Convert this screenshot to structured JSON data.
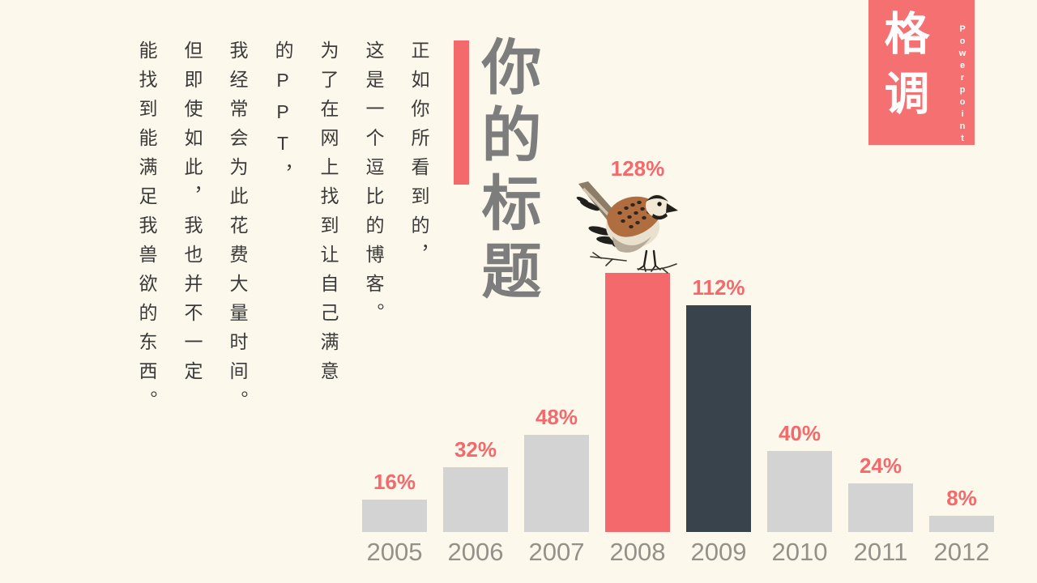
{
  "slide": {
    "background_color": "#fdf8ec"
  },
  "logo": {
    "title": "格调",
    "subtitle": "Powerpoint",
    "background_color": "#f57070",
    "text_color": "#ffffff"
  },
  "title": {
    "text": "你的标题",
    "accent_color": "#f4696b",
    "text_color": "#7d7d7d"
  },
  "body": {
    "columns": [
      "正如你所看到的，",
      "这是一个逗比的博客。",
      "为了在网上找到让自己满意",
      "的PPT，",
      "我经常会为此花费大量时间。",
      "但即使如此，我也并不一定",
      "能找到能满足我兽欲的东西。"
    ]
  },
  "chart_data": {
    "type": "bar",
    "title": "",
    "categories": [
      "2005",
      "2006",
      "2007",
      "2008",
      "2009",
      "2010",
      "2011",
      "2012"
    ],
    "values": [
      16,
      32,
      48,
      128,
      112,
      40,
      24,
      8
    ],
    "value_suffix": "%",
    "ylim": [
      0,
      128
    ],
    "gridlines": false,
    "legend": "none",
    "axis_lines": "none",
    "value_label_color": "#f4696b",
    "category_label_color": "#95918a",
    "bar_colors": {
      "default": "#d3d3d4",
      "2008": "#f4696b",
      "2009": "#39434b"
    },
    "annotations": {
      "bird_on": "2008"
    }
  }
}
